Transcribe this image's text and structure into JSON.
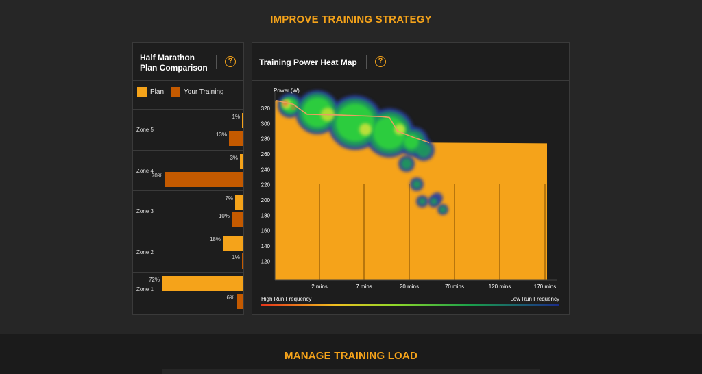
{
  "section1": {
    "title": "IMPROVE TRAINING STRATEGY"
  },
  "section2": {
    "title": "MANAGE TRAINING LOAD"
  },
  "comparison": {
    "title_line1": "Half Marathon",
    "title_line2": "Plan Comparison",
    "help": "?",
    "legend": {
      "plan": "Plan",
      "yours": "Your Training"
    },
    "colors": {
      "plan": "#f5a31a",
      "yours": "#c45a00"
    },
    "zones": [
      {
        "name": "Zone 5",
        "plan": "1%",
        "yours": "13%"
      },
      {
        "name": "Zone 4",
        "plan": "3%",
        "yours": "70%"
      },
      {
        "name": "Zone 3",
        "plan": "7%",
        "yours": "10%"
      },
      {
        "name": "Zone 2",
        "plan": "18%",
        "yours": "1%"
      },
      {
        "name": "Zone 1",
        "plan": "72%",
        "yours": "6%"
      }
    ]
  },
  "heatmap": {
    "title": "Training Power Heat Map",
    "help": "?",
    "ylabel": "Power (W)",
    "legend_high": "High Run Frequency",
    "legend_low": "Low Run Frequency"
  },
  "chart_data": {
    "type": "heatmap",
    "title": "Training Power Heat Map",
    "ylabel": "Power (W)",
    "yticks": [
      320,
      300,
      280,
      260,
      240,
      220,
      200,
      180,
      160,
      140,
      120
    ],
    "xticks": [
      "2 mins",
      "7 mins",
      "20 mins",
      "70 mins",
      "120 mins",
      "170 mins"
    ],
    "plan_curve_power": [
      330,
      330,
      322,
      320,
      303,
      303,
      302,
      285,
      282,
      276,
      275,
      274
    ],
    "your_curve_power": [
      330,
      325,
      312,
      311,
      310,
      309,
      308,
      290,
      282,
      275
    ],
    "colors": {
      "area": "#f5a31a",
      "curve": "#e8a060"
    }
  }
}
